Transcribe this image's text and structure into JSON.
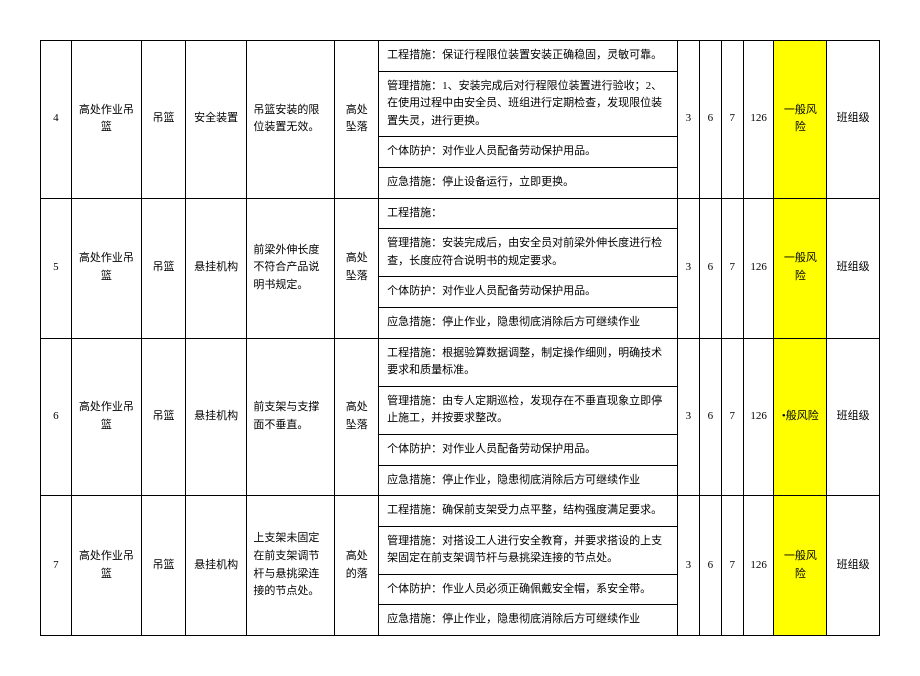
{
  "cols": {
    "risk_bg": "#ffff00"
  },
  "rows": [
    {
      "idx": "4",
      "job": "高处作业吊篮",
      "item": "吊篮",
      "sub": "安全装置",
      "desc": "吊篮安装的限位装置无效。",
      "hazard": "高处坠落",
      "m1": "工程措施：保证行程限位装置安装正确稳固，灵敏可靠。",
      "m2": "管理措施：1、安装完成后对行程限位装置进行验收；2、在使用过程中由安全员、班组进行定期检查，发现限位装置失灵，进行更换。",
      "m3": "个体防护：对作业人员配备劳动保护用品。",
      "m4": "应急措施：停止设备运行，立即更换。",
      "n1": "3",
      "n2": "6",
      "n3": "7",
      "n4": "126",
      "risk": "一般风险",
      "level": "班组级"
    },
    {
      "idx": "5",
      "job": "高处作业吊篮",
      "item": "吊篮",
      "sub": "悬挂机构",
      "desc": "前梁外伸长度不符合产品说明书规定。",
      "hazard": "高处坠落",
      "m1": "工程措施：",
      "m2": "管理措施：安装完成后，由安全员对前梁外伸长度进行检查，长度应符合说明书的规定要求。",
      "m3": "个体防护：对作业人员配备劳动保护用品。",
      "m4": "应急措施：停止作业，隐患彻底消除后方可继续作业",
      "n1": "3",
      "n2": "6",
      "n3": "7",
      "n4": "126",
      "risk": "一般风险",
      "level": "班组级"
    },
    {
      "idx": "6",
      "job": "高处作业吊篮",
      "item": "吊篮",
      "sub": "悬挂机构",
      "desc": "前支架与支撑面不垂直。",
      "hazard": "高处坠落",
      "m1": "工程措施：根据验算数据调整，制定操作细则，明确技术要求和质量标准。",
      "m2": "管理措施：由专人定期巡检，发现存在不垂直现象立即停止施工，并按要求整改。",
      "m3": "个体防护：对作业人员配备劳动保护用品。",
      "m4": "应急措施：停止作业，隐患彻底消除后方可继续作业",
      "n1": "3",
      "n2": "6",
      "n3": "7",
      "n4": "126",
      "risk": "•般风险",
      "level": "班组级"
    },
    {
      "idx": "7",
      "job": "高处作业吊篮",
      "item": "吊篮",
      "sub": "悬挂机构",
      "desc": "上支架未固定在前支架调节杆与悬挑梁连接的节点处。",
      "hazard": "高处的落",
      "m1": "工程措施：确保前支架受力点平整，结构强度满足要求。",
      "m2": "管理措施：对搭设工人进行安全教育，并要求搭设的上支架固定在前支架调节杆与悬挑梁连接的节点处。",
      "m3": "个体防护：作业人员必须正确佩戴安全帽，系安全带。",
      "m4": "应急措施：停止作业，隐患彻底消除后方可继续作业",
      "n1": "3",
      "n2": "6",
      "n3": "7",
      "n4": "126",
      "risk": "一般风险",
      "level": "班组级"
    }
  ]
}
